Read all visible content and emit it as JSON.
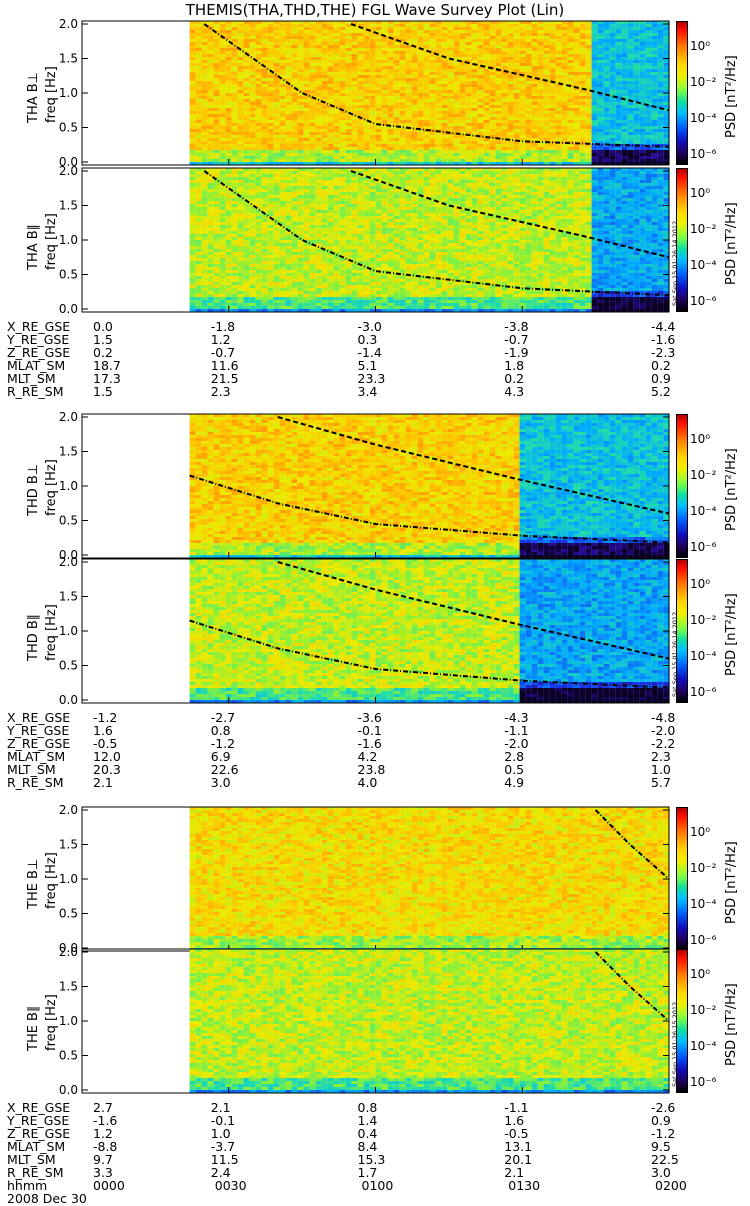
{
  "title": "THEMIS(THA,THD,THE) FGL Wave Survey Plot (Lin)",
  "date": "2008 Dec 30",
  "colors": {
    "bg": "#ffffff",
    "axis": "#000000",
    "curve": "#000000"
  },
  "colorbar": {
    "title": "PSD [nT²/Hz]",
    "ticks": [
      "10⁰",
      "10⁻²",
      "10⁻⁴",
      "10⁻⁶"
    ],
    "scale": "log"
  },
  "ephemeris_labels": [
    "X_RE_GSE",
    "Y_RE_GSE",
    "Z_RE_GSE",
    "MLAT_SM",
    "MLT_SM",
    "R_RE_SM"
  ],
  "time_label": "hhmm",
  "groups": [
    {
      "probe": "THA",
      "panels": [
        {
          "ylabel": "THA B⊥",
          "unit": "freq [Hz]"
        },
        {
          "ylabel": "THA B∥",
          "unit": "freq [Hz]"
        }
      ],
      "stamp": "Sat Sep 15 01:26:14 2012",
      "ephemeris": [
        [
          "0.0",
          "-1.8",
          "-3.0",
          "-3.8",
          "-4.4"
        ],
        [
          "1.5",
          "1.2",
          "0.3",
          "-0.7",
          "-1.6"
        ],
        [
          "0.2",
          "-0.7",
          "-1.4",
          "-1.9",
          "-2.3"
        ],
        [
          "18.7",
          "11.6",
          "5.1",
          "1.8",
          "0.2"
        ],
        [
          "17.3",
          "21.5",
          "23.3",
          "0.2",
          "0.9"
        ],
        [
          "1.5",
          "2.3",
          "3.4",
          "4.3",
          "5.2"
        ]
      ]
    },
    {
      "probe": "THD",
      "panels": [
        {
          "ylabel": "THD B⊥",
          "unit": "freq [Hz]"
        },
        {
          "ylabel": "THD B∥",
          "unit": "freq [Hz]"
        }
      ],
      "stamp": "Sat Sep 15 01:26:14 2012",
      "ephemeris": [
        [
          "-1.2",
          "-2.7",
          "-3.6",
          "-4.3",
          "-4.8"
        ],
        [
          "1.6",
          "0.8",
          "-0.1",
          "-1.1",
          "-2.0"
        ],
        [
          "-0.5",
          "-1.2",
          "-1.6",
          "-2.0",
          "-2.2"
        ],
        [
          "12.0",
          "6.9",
          "4.2",
          "2.8",
          "2.3"
        ],
        [
          "20.3",
          "22.6",
          "23.8",
          "0.5",
          "1.0"
        ],
        [
          "2.1",
          "3.0",
          "4.0",
          "4.9",
          "5.7"
        ]
      ]
    },
    {
      "probe": "THE",
      "panels": [
        {
          "ylabel": "THE B⊥",
          "unit": "freq [Hz]"
        },
        {
          "ylabel": "THE B∥",
          "unit": "freq [Hz]"
        }
      ],
      "stamp": "Sat Sep 15 01:26:15 2012",
      "ephemeris": [
        [
          "2.7",
          "2.1",
          "0.8",
          "-1.1",
          "-2.6"
        ],
        [
          "-1.6",
          "-0.1",
          "1.4",
          "1.6",
          "0.9"
        ],
        [
          "1.2",
          "1.0",
          "0.4",
          "-0.5",
          "-1.2"
        ],
        [
          "-8.8",
          "-3.7",
          "8.4",
          "13.1",
          "9.5"
        ],
        [
          "9.7",
          "11.5",
          "15.3",
          "20.1",
          "22.5"
        ],
        [
          "3.3",
          "2.4",
          "1.7",
          "2.1",
          "3.0"
        ]
      ],
      "time_ticks": [
        "0000",
        "0030",
        "0100",
        "0130",
        "0200"
      ]
    }
  ],
  "chart_data": [
    {
      "type": "heatmap",
      "title": "THEMIS(THA,THD,THE) FGL Wave Survey Plot (Lin)",
      "panel": "THA B⊥",
      "xlabel": "hhmm",
      "ylabel": "freq [Hz]",
      "xlim": [
        "0000",
        "0200"
      ],
      "ylim": [
        0.0,
        2.0
      ],
      "yticks": [
        0.0,
        0.5,
        1.0,
        1.5,
        2.0
      ],
      "data_start": "0022",
      "mode_change": "0143",
      "colorscale": "log PSD nT²/Hz",
      "curves": [
        {
          "style": "dash-dot",
          "x": [
            "0025",
            "0045",
            "0100",
            "0130",
            "0200"
          ],
          "y": [
            2.0,
            1.0,
            0.55,
            0.3,
            0.22
          ]
        },
        {
          "style": "dash",
          "x": [
            "0055",
            "0115",
            "0143",
            "0200"
          ],
          "y": [
            2.0,
            1.5,
            1.05,
            0.75
          ]
        }
      ]
    },
    {
      "type": "heatmap",
      "panel": "THA B∥",
      "xlabel": "hhmm",
      "ylabel": "freq [Hz]",
      "ylim": [
        0.0,
        2.0
      ],
      "yticks": [
        0.0,
        0.5,
        1.0,
        1.5,
        2.0
      ]
    },
    {
      "type": "heatmap",
      "panel": "THD B⊥",
      "xlabel": "hhmm",
      "ylabel": "freq [Hz]",
      "ylim": [
        0.0,
        2.0
      ],
      "yticks": [
        0.0,
        0.5,
        1.0,
        1.5,
        2.0
      ],
      "data_start": "0022",
      "mode_change": "0129"
    },
    {
      "type": "heatmap",
      "panel": "THD B∥",
      "xlabel": "hhmm",
      "ylabel": "freq [Hz]",
      "ylim": [
        0.0,
        2.0
      ],
      "yticks": [
        0.0,
        0.5,
        1.0,
        1.5,
        2.0
      ]
    },
    {
      "type": "heatmap",
      "panel": "THE B⊥",
      "xlabel": "hhmm",
      "ylabel": "freq [Hz]",
      "ylim": [
        0.0,
        2.0
      ],
      "yticks": [
        0.0,
        0.5,
        1.0,
        1.5,
        2.0
      ],
      "data_start": "0022"
    },
    {
      "type": "heatmap",
      "panel": "THE B∥",
      "xlabel": "hhmm",
      "ylabel": "freq [Hz]",
      "ylim": [
        0.0,
        2.0
      ],
      "yticks": [
        0.0,
        0.5,
        1.0,
        1.5,
        2.0
      ]
    }
  ]
}
